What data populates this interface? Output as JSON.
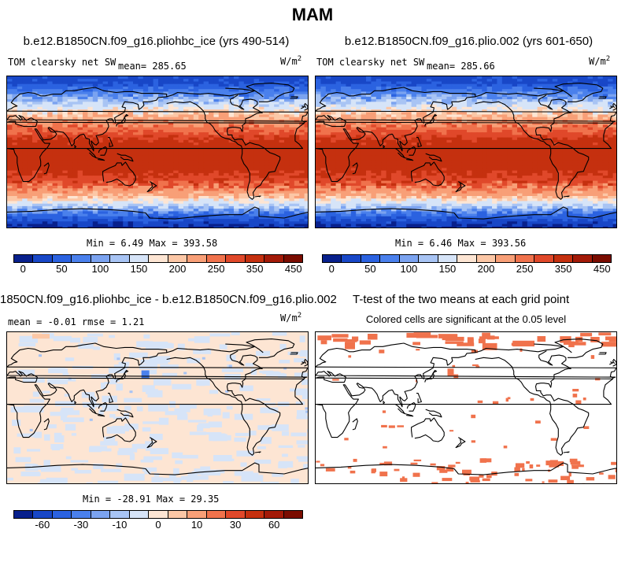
{
  "title": "MAM",
  "panels": [
    {
      "id": "p1",
      "title": "b.e12.B1850CN.f09_g16.pliohbc_ice (yrs 490-514)",
      "variable": "TOM clearsky net SW",
      "mean_label": "mean= 285.65",
      "units_base": "W/m",
      "units_exp": "2",
      "stats": "Min =   6.49 Max = 393.58"
    },
    {
      "id": "p2",
      "title": "b.e12.B1850CN.f09_g16.plio.002 (yrs 601-650)",
      "variable": "TOM clearsky net SW",
      "mean_label": "mean= 285.66",
      "units_base": "W/m",
      "units_exp": "2",
      "stats": "Min =   6.46 Max = 393.56"
    },
    {
      "id": "p3",
      "title": "1850CN.f09_g16.pliohbc_ice - b.e12.B1850CN.f09_g16.plio.002",
      "stats_line": "mean =  -0.01    rmse =    1.21",
      "units_base": "W/m",
      "units_exp": "2",
      "stats": "Min = -28.91 Max =  29.35"
    },
    {
      "id": "p4",
      "title": "T-test of the two means at each grid point",
      "subtitle": "Colored cells are significant at the 0.05 level"
    }
  ],
  "colorbars": {
    "absolute": {
      "colors": [
        "#08208c",
        "#1847c7",
        "#2b62e0",
        "#4a80ec",
        "#7ba3f0",
        "#a8c4f4",
        "#d6e4f8",
        "#fde5d3",
        "#fcc7a6",
        "#f89f77",
        "#f0724c",
        "#e0482a",
        "#c5300f",
        "#a31a08",
        "#7a0c00"
      ],
      "tick_labels": [
        "0",
        "50",
        "100",
        "150",
        "200",
        "250",
        "350",
        "450"
      ]
    },
    "difference": {
      "colors": [
        "#08208c",
        "#1847c7",
        "#2b62e0",
        "#4a80ec",
        "#7ba3f0",
        "#a8c4f4",
        "#d6e4f8",
        "#fde5d3",
        "#fcc7a6",
        "#f89f77",
        "#f0724c",
        "#e0482a",
        "#c5300f",
        "#a31a08",
        "#7a0c00"
      ],
      "tick_labels": [
        "-60",
        "-30",
        "-10",
        "0",
        "10",
        "30",
        "60"
      ]
    }
  },
  "chart_data": [
    {
      "type": "heatmap",
      "title": "b.e12.B1850CN.f09_g16.pliohbc_ice (yrs 490-514)",
      "variable": "TOM clearsky net SW",
      "units": "W/m2",
      "mean": 285.65,
      "min": 6.49,
      "max": 393.58,
      "latitude_bands_value": [
        {
          "lat": 85,
          "value": 40
        },
        {
          "lat": 65,
          "value": 120
        },
        {
          "lat": 50,
          "value": 220
        },
        {
          "lat": 35,
          "value": 300
        },
        {
          "lat": 15,
          "value": 360
        },
        {
          "lat": 0,
          "value": 375
        },
        {
          "lat": -15,
          "value": 370
        },
        {
          "lat": -35,
          "value": 330
        },
        {
          "lat": -50,
          "value": 250
        },
        {
          "lat": -60,
          "value": 160
        },
        {
          "lat": -70,
          "value": 80
        },
        {
          "lat": -85,
          "value": 20
        }
      ],
      "colorbar_ticks": [
        0,
        50,
        100,
        150,
        200,
        250,
        350,
        450
      ]
    },
    {
      "type": "heatmap",
      "title": "b.e12.B1850CN.f09_g16.plio.002 (yrs 601-650)",
      "variable": "TOM clearsky net SW",
      "units": "W/m2",
      "mean": 285.66,
      "min": 6.46,
      "max": 393.56,
      "latitude_bands_value": [
        {
          "lat": 85,
          "value": 40
        },
        {
          "lat": 65,
          "value": 120
        },
        {
          "lat": 50,
          "value": 220
        },
        {
          "lat": 35,
          "value": 300
        },
        {
          "lat": 15,
          "value": 360
        },
        {
          "lat": 0,
          "value": 375
        },
        {
          "lat": -15,
          "value": 370
        },
        {
          "lat": -35,
          "value": 330
        },
        {
          "lat": -50,
          "value": 250
        },
        {
          "lat": -60,
          "value": 160
        },
        {
          "lat": -70,
          "value": 80
        },
        {
          "lat": -85,
          "value": 20
        }
      ],
      "colorbar_ticks": [
        0,
        50,
        100,
        150,
        200,
        250,
        350,
        450
      ]
    },
    {
      "type": "heatmap",
      "title": "1850CN.f09_g16.pliohbc_ice - b.e12.B1850CN.f09_g16.plio.002",
      "units": "W/m2",
      "mean": -0.01,
      "rmse": 1.21,
      "min": -28.91,
      "max": 29.35,
      "colorbar_ticks": [
        -60,
        -30,
        -10,
        0,
        10,
        30,
        60
      ]
    },
    {
      "type": "heatmap",
      "title": "T-test of the two means at each grid point",
      "subtitle": "Colored cells are significant at the 0.05 level",
      "significance_level": 0.05
    }
  ]
}
